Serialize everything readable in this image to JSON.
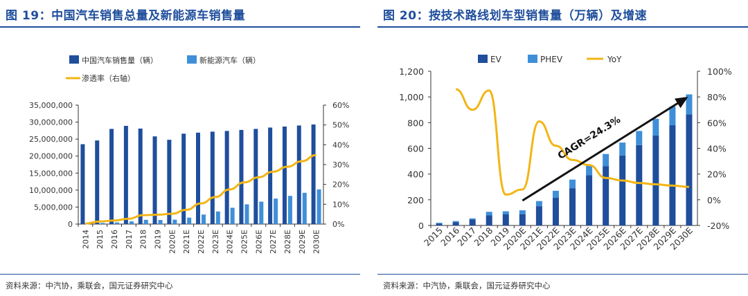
{
  "left": {
    "title": "图 19：中国汽车销售总量及新能源车销售量",
    "source": "资料来源：中汽协，乘联会，国元证券研究中心",
    "legend": {
      "total": "中国汽车销售量（辆）",
      "nev": "新能源汽车（辆）",
      "pen": "渗透率（右轴）"
    },
    "colors": {
      "total": "#1f4e9c",
      "nev": "#3f8fd8",
      "pen": "#f2b514"
    }
  },
  "right": {
    "title": "图 20：按技术路线划车型销售量（万辆）及增速",
    "source": "资料来源：中汽协，乘联会，国元证券研究中心",
    "legend": {
      "ev": "EV",
      "phev": "PHEV",
      "yoy": "YoY"
    },
    "annotation": "CAGR=24.3%",
    "colors": {
      "ev": "#1f4e9c",
      "phev": "#3f8fd8",
      "yoy": "#f2b514"
    }
  },
  "chart_data": [
    {
      "type": "bar",
      "categories": [
        "2014",
        "2015",
        "2016",
        "2017",
        "2018",
        "2019",
        "2020E",
        "2021E",
        "2022E",
        "2023E",
        "2024E",
        "2025E",
        "2026E",
        "2027E",
        "2028E",
        "2029E",
        "2030E"
      ],
      "series": [
        {
          "name": "中国汽车销售量（辆）",
          "axis": "left",
          "values": [
            23500000,
            24600000,
            28000000,
            28900000,
            28100000,
            25800000,
            24800000,
            26600000,
            26900000,
            27200000,
            27400000,
            27700000,
            28000000,
            28400000,
            28700000,
            29000000,
            29300000
          ]
        },
        {
          "name": "新能源汽车（辆）",
          "axis": "left",
          "values": [
            75000,
            330000,
            500000,
            780000,
            1250000,
            1200000,
            1300000,
            1900000,
            2800000,
            3700000,
            4800000,
            5800000,
            6600000,
            7500000,
            8300000,
            9200000,
            10200000
          ]
        },
        {
          "name": "渗透率（右轴）",
          "type": "line",
          "axis": "right",
          "values": [
            0.3,
            1.3,
            1.8,
            2.7,
            4.5,
            4.7,
            5.2,
            7.2,
            10.4,
            13.6,
            17.5,
            21.0,
            23.6,
            26.4,
            28.9,
            31.7,
            34.8
          ]
        }
      ],
      "ylim": [
        0,
        35000000
      ],
      "yticks": [
        "35,000,000",
        "30,000,000",
        "25,000,000",
        "20,000,000",
        "15,000,000",
        "10,000,000",
        "5,000,000",
        "0"
      ],
      "y2lim": [
        0,
        60
      ],
      "y2ticks": [
        "60%",
        "50%",
        "40%",
        "30%",
        "20%",
        "10%",
        "0%"
      ],
      "legend_position": "top"
    },
    {
      "type": "bar",
      "stacked": true,
      "categories": [
        "2015",
        "2016",
        "2017",
        "2018",
        "2019",
        "2020E",
        "2021E",
        "2022E",
        "2023E",
        "2024E",
        "2025E",
        "2026E",
        "2027E",
        "2028E",
        "2029E",
        "2030E"
      ],
      "series": [
        {
          "name": "EV",
          "axis": "left",
          "values": [
            15,
            26,
            46,
            78,
            86,
            88,
            150,
            215,
            290,
            390,
            460,
            545,
            625,
            700,
            780,
            865
          ]
        },
        {
          "name": "PHEV",
          "axis": "left",
          "values": [
            6,
            8,
            9,
            28,
            24,
            30,
            40,
            55,
            67,
            80,
            96,
            100,
            110,
            130,
            145,
            155
          ]
        },
        {
          "name": "YoY",
          "type": "line",
          "axis": "right",
          "values": [
            null,
            86,
            70,
            85,
            4,
            8,
            61,
            42,
            31,
            27,
            17,
            15,
            13,
            12,
            11,
            10
          ]
        }
      ],
      "ylim": [
        0,
        1200
      ],
      "yticks": [
        "1,200",
        "1,000",
        "800",
        "600",
        "400",
        "200",
        "0"
      ],
      "y2lim": [
        -20,
        100
      ],
      "y2ticks": [
        "100%",
        "80%",
        "60%",
        "40%",
        "20%",
        "0%",
        "-20%"
      ],
      "annotations": [
        "CAGR=24.3%"
      ],
      "legend_position": "top"
    }
  ]
}
